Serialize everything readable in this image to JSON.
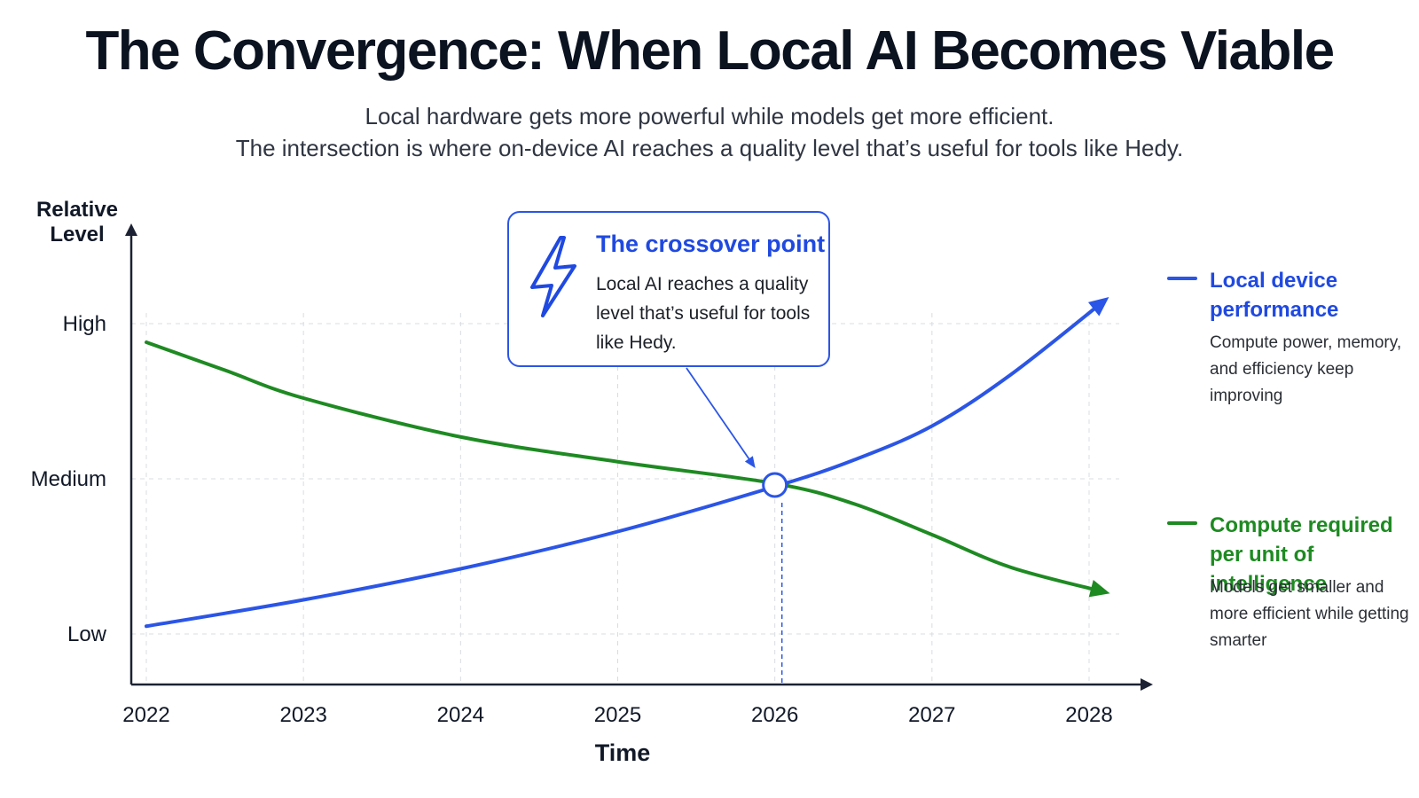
{
  "header": {
    "title": "The Convergence: When Local AI Becomes Viable",
    "subtitle_line1": "Local hardware gets more powerful while models get more efficient.",
    "subtitle_line2": "The intersection is where on-device AI reaches a quality level that’s useful for tools like Hedy."
  },
  "callout": {
    "icon": "lightning-icon",
    "title": "The crossover point",
    "body": "Local AI reaches a quality level that’s useful for tools like Hedy."
  },
  "legend": [
    {
      "title": "Local device performance",
      "description": "Compute power, memory, and efficiency keep improving",
      "color": "#2b55e6"
    },
    {
      "title": "Compute required per unit of intelligence",
      "description": "Models get smaller and more efficient while getting smarter",
      "color": "#1e8a22"
    }
  ],
  "chart_data": {
    "type": "line",
    "title": "The Convergence: When Local AI Becomes Viable",
    "xlabel": "Time",
    "ylabel": "Relative Level",
    "x_ticks": [
      "2022",
      "2023",
      "2024",
      "2025",
      "2026",
      "2027",
      "2028"
    ],
    "y_ticks": [
      "Low",
      "Medium",
      "High"
    ],
    "xlim": [
      2022,
      2028.2
    ],
    "ylim": [
      0,
      2.3
    ],
    "grid": true,
    "legend_position": "right",
    "series": [
      {
        "name": "Local device performance",
        "color": "#2b55e6",
        "x": [
          2022,
          2023,
          2024,
          2025,
          2026,
          2026.5,
          2027,
          2027.5,
          2028.1
        ],
        "y": [
          0.05,
          0.22,
          0.42,
          0.66,
          0.95,
          1.12,
          1.34,
          1.67,
          2.15
        ]
      },
      {
        "name": "Compute required per unit of intelligence",
        "color": "#1e8a22",
        "x": [
          2022,
          2022.5,
          2023,
          2024,
          2025,
          2026,
          2026.5,
          2027,
          2027.5,
          2028.1
        ],
        "y": [
          1.88,
          1.7,
          1.52,
          1.27,
          1.11,
          0.97,
          0.84,
          0.64,
          0.43,
          0.27
        ]
      }
    ],
    "crossover": {
      "x": 2026,
      "y": 0.96
    }
  }
}
